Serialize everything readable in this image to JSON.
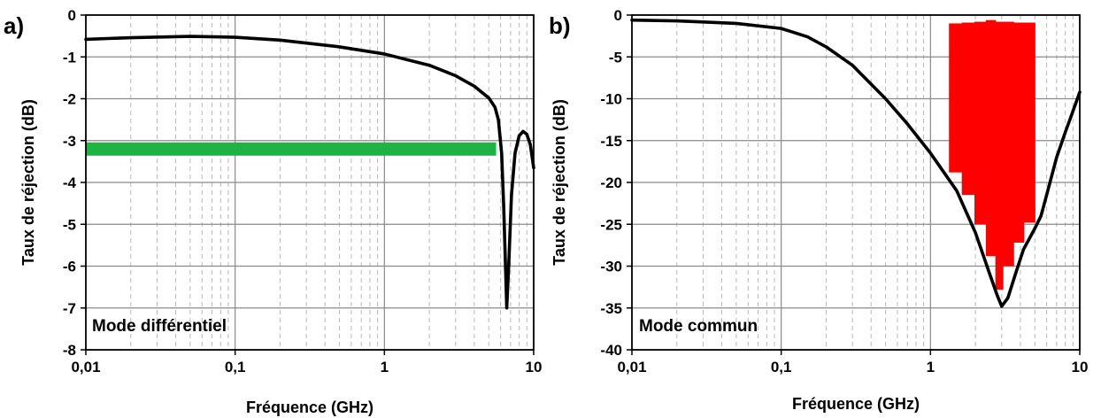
{
  "chart_data": [
    {
      "panel_label": "a)",
      "type": "line",
      "xlabel": "Fréquence (GHz)",
      "ylabel": "Taux de réjection (dB)",
      "xscale": "log",
      "xlim": [
        0.01,
        10
      ],
      "ylim": [
        -8,
        0
      ],
      "xticks": [
        "0,01",
        "0,1",
        "1",
        "10"
      ],
      "yticks": [
        "0",
        "-1",
        "-2",
        "-3",
        "-4",
        "-5",
        "-6",
        "-7",
        "-8"
      ],
      "grid": true,
      "annotation": "Mode différentiel",
      "series": [
        {
          "color": "#000000",
          "x": [
            0.01,
            0.02,
            0.05,
            0.1,
            0.2,
            0.5,
            1,
            2,
            3,
            4,
            5,
            5.5,
            5.8,
            6.1,
            6.3,
            6.5,
            6.6,
            6.8,
            7.1,
            7.5,
            8,
            8.5,
            9,
            9.5,
            10
          ],
          "y": [
            -0.58,
            -0.54,
            -0.51,
            -0.53,
            -0.6,
            -0.76,
            -0.93,
            -1.2,
            -1.45,
            -1.7,
            -1.98,
            -2.2,
            -2.5,
            -3.3,
            -4.6,
            -6.2,
            -7.0,
            -6.0,
            -4.3,
            -3.3,
            -2.88,
            -2.78,
            -2.85,
            -3.1,
            -3.65
          ]
        }
      ],
      "band": {
        "color": "#1db345",
        "x": [
          0.01,
          5.6
        ],
        "y": -3.2
      }
    },
    {
      "panel_label": "b)",
      "type": "line",
      "xlabel": "Fréquence (GHz)",
      "ylabel": "Taux de réjection (dB)",
      "xscale": "log",
      "xlim": [
        0.01,
        10
      ],
      "ylim": [
        -40,
        0
      ],
      "xticks": [
        "0,01",
        "0,1",
        "1",
        "10"
      ],
      "yticks": [
        "0",
        "-5",
        "-10",
        "-15",
        "-20",
        "-25",
        "-30",
        "-35",
        "-40"
      ],
      "grid": true,
      "annotation": "Mode commun",
      "series": [
        {
          "color": "#000000",
          "x": [
            0.01,
            0.02,
            0.05,
            0.1,
            0.15,
            0.2,
            0.3,
            0.5,
            0.7,
            1,
            1.5,
            2,
            2.5,
            2.8,
            3,
            3.3,
            3.7,
            4.2,
            5,
            5.5,
            6,
            7,
            8,
            9,
            10
          ],
          "y": [
            -0.6,
            -0.7,
            -1.0,
            -1.6,
            -2.6,
            -3.8,
            -6.0,
            -10.0,
            -13.0,
            -16.5,
            -21.0,
            -26.0,
            -31.0,
            -33.5,
            -34.8,
            -33.8,
            -31.0,
            -28.0,
            -25.5,
            -24.0,
            -21.5,
            -17.0,
            -14.0,
            -11.5,
            -9.2
          ]
        }
      ],
      "mask": {
        "color": "#ff0000",
        "steps": [
          {
            "x": [
              1.33,
              1.62
            ],
            "y": [
              -18.8,
              -1.0
            ]
          },
          {
            "x": [
              1.62,
              1.97
            ],
            "y": [
              -21.5,
              -0.9
            ]
          },
          {
            "x": [
              1.97,
              2.35
            ],
            "y": [
              -25.0,
              -0.8
            ]
          },
          {
            "x": [
              2.35,
              2.72
            ],
            "y": [
              -28.8,
              -0.6
            ]
          },
          {
            "x": [
              2.72,
              3.05
            ],
            "y": [
              -32.8,
              -0.8
            ]
          },
          {
            "x": [
              3.05,
              3.6
            ],
            "y": [
              -30.0,
              -0.8
            ]
          },
          {
            "x": [
              3.6,
              4.2
            ],
            "y": [
              -27.2,
              -0.9
            ]
          },
          {
            "x": [
              4.2,
              5.0
            ],
            "y": [
              -24.8,
              -0.9
            ]
          }
        ]
      }
    }
  ]
}
